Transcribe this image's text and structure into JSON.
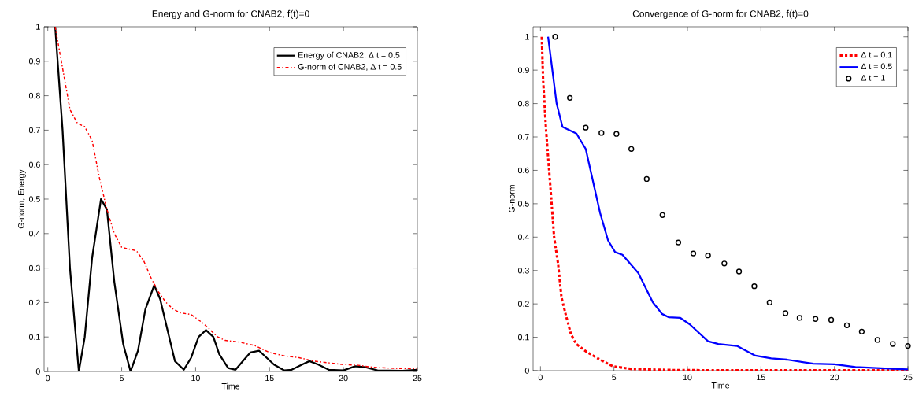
{
  "chart_data": [
    {
      "type": "line",
      "title": "Energy and G-norm for CNAB2, f(t)=0",
      "xlabel": "Time",
      "ylabel": "G-norm, Energy",
      "xlim": [
        -0.25,
        25
      ],
      "ylim": [
        0,
        1
      ],
      "xticks": [
        0,
        5,
        10,
        15,
        20,
        25
      ],
      "yticks": [
        0,
        0.1,
        0.2,
        0.3,
        0.4,
        0.5,
        0.6,
        0.7,
        0.8,
        0.9,
        1
      ],
      "legend": "top right",
      "grid": false,
      "series": [
        {
          "name": "Energy of CNAB2, Δ t = 0.5",
          "color": "#000000",
          "line_style": "solid",
          "x": [
            0.5,
            1,
            1.5,
            2.1,
            2.5,
            3.0,
            3.6,
            4.0,
            4.5,
            5.1,
            5.6,
            6.1,
            6.6,
            7.2,
            7.6,
            8.1,
            8.6,
            9.2,
            9.7,
            10.2,
            10.7,
            11.2,
            11.6,
            12.2,
            12.7,
            13.2,
            13.7,
            14.3,
            14.8,
            15.3,
            16.0,
            16.5,
            17.2,
            17.7,
            18.3,
            19.0,
            20.0,
            20.8,
            21.5,
            22.3,
            24,
            25
          ],
          "values": [
            1,
            0.7,
            0.3,
            0,
            0.1,
            0.33,
            0.5,
            0.47,
            0.26,
            0.08,
            0,
            0.06,
            0.18,
            0.25,
            0.21,
            0.12,
            0.03,
            0.005,
            0.04,
            0.1,
            0.12,
            0.1,
            0.05,
            0.01,
            0.005,
            0.03,
            0.055,
            0.06,
            0.04,
            0.02,
            0.003,
            0.005,
            0.02,
            0.03,
            0.02,
            0.005,
            0.003,
            0.015,
            0.012,
            0.003,
            0.002,
            0.005
          ]
        },
        {
          "name": "G-norm of CNAB2, Δ t = 0.5",
          "color": "#ff0000",
          "line_style": "dashdot",
          "x": [
            0.5,
            1.0,
            1.5,
            2.0,
            2.5,
            3.0,
            3.5,
            4.0,
            4.5,
            5.0,
            6.0,
            6.5,
            7.0,
            7.5,
            8.0,
            8.5,
            9.0,
            9.7,
            10.5,
            11.0,
            11.5,
            12.0,
            13.0,
            14.0,
            14.5,
            15,
            16,
            17,
            18,
            19,
            20,
            21,
            22,
            23,
            24,
            25
          ],
          "values": [
            1,
            0.88,
            0.76,
            0.72,
            0.71,
            0.67,
            0.56,
            0.47,
            0.4,
            0.36,
            0.35,
            0.32,
            0.27,
            0.23,
            0.2,
            0.18,
            0.17,
            0.165,
            0.14,
            0.12,
            0.1,
            0.09,
            0.085,
            0.075,
            0.065,
            0.055,
            0.045,
            0.04,
            0.03,
            0.025,
            0.02,
            0.018,
            0.012,
            0.01,
            0.008,
            0.008
          ]
        }
      ]
    },
    {
      "type": "line",
      "title": "Convergence of G-norm for CNAB2, f(t)=0",
      "xlabel": "Time",
      "ylabel": "G-norm",
      "xlim": [
        -0.5,
        25
      ],
      "ylim": [
        0,
        1.03
      ],
      "xticks": [
        0,
        5,
        10,
        15,
        20,
        25
      ],
      "yticks": [
        0,
        0.1,
        0.2,
        0.3,
        0.4,
        0.5,
        0.6,
        0.7,
        0.8,
        0.9,
        1
      ],
      "legend": "top right",
      "grid": false,
      "series": [
        {
          "name": "Δ t = 0.1",
          "color": "#ff0000",
          "line_style": "dashdot",
          "x": [
            0.09,
            0.18,
            0.39,
            0.66,
            0.93,
            1.2,
            1.43,
            1.73,
            2.07,
            2.43,
            3.15,
            4.05,
            4.94,
            6.2,
            8.86,
            12,
            16,
            20,
            25
          ],
          "values": [
            1,
            0.87,
            0.715,
            0.56,
            0.4,
            0.32,
            0.22,
            0.166,
            0.11,
            0.08,
            0.056,
            0.033,
            0.013,
            0.005,
            0.002,
            0.001,
            0.001,
            0.001,
            0.001
          ]
        },
        {
          "name": "Δ t = 0.5",
          "color": "#0000ff",
          "line_style": "solid",
          "x": [
            0.52,
            1.1,
            1.5,
            2.45,
            3.08,
            4.06,
            4.6,
            5.08,
            5.58,
            6.66,
            7.64,
            8.27,
            8.72,
            9.52,
            10.15,
            11.4,
            12.1,
            13.37,
            14.62,
            15.7,
            16.77,
            18.56,
            20.0,
            21.43,
            22.86,
            24.29,
            25
          ],
          "values": [
            1,
            0.8,
            0.73,
            0.71,
            0.664,
            0.472,
            0.39,
            0.355,
            0.347,
            0.292,
            0.205,
            0.17,
            0.16,
            0.158,
            0.139,
            0.088,
            0.08,
            0.074,
            0.045,
            0.037,
            0.033,
            0.021,
            0.019,
            0.011,
            0.008,
            0.005,
            0.004
          ]
        },
        {
          "name": "Δ t = 1",
          "type": "scatter",
          "color": "#000000",
          "marker": "circle",
          "x": [
            1.0,
            2.0,
            3.08,
            4.15,
            5.17,
            6.18,
            7.23,
            8.3,
            9.38,
            10.4,
            11.4,
            12.51,
            13.51,
            14.55,
            15.59,
            16.67,
            17.63,
            18.71,
            19.78,
            20.85,
            21.86,
            22.93,
            23.97,
            25.0
          ],
          "values": [
            1.0,
            0.817,
            0.728,
            0.712,
            0.709,
            0.664,
            0.574,
            0.466,
            0.384,
            0.351,
            0.345,
            0.321,
            0.297,
            0.253,
            0.204,
            0.172,
            0.158,
            0.155,
            0.152,
            0.136,
            0.117,
            0.092,
            0.08,
            0.074
          ]
        }
      ]
    }
  ]
}
